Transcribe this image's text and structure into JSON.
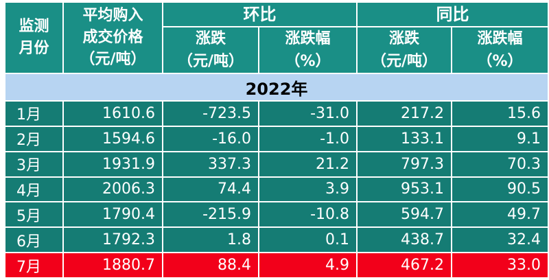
{
  "header": {
    "month_col": [
      "监测",
      "月份"
    ],
    "price_col": [
      "平均购入",
      "成交价格",
      "（元/吨）"
    ],
    "mom_group": "环比",
    "yoy_group": "同比",
    "change_label": [
      "涨跌",
      "（元/吨）"
    ],
    "change_pct_label": [
      "涨跌幅",
      "（%）"
    ]
  },
  "year_label": "2022年",
  "rows": [
    {
      "month": "1月",
      "price": "1610.6",
      "mom_change": "-723.5",
      "mom_pct": "-31.0",
      "yoy_change": "217.2",
      "yoy_pct": "15.6"
    },
    {
      "month": "2月",
      "price": "1594.6",
      "mom_change": "-16.0",
      "mom_pct": "-1.0",
      "yoy_change": "133.1",
      "yoy_pct": "9.1"
    },
    {
      "month": "3月",
      "price": "1931.9",
      "mom_change": "337.3",
      "mom_pct": "21.2",
      "yoy_change": "797.3",
      "yoy_pct": "70.3"
    },
    {
      "month": "4月",
      "price": "2006.3",
      "mom_change": "74.4",
      "mom_pct": "3.9",
      "yoy_change": "953.1",
      "yoy_pct": "90.5"
    },
    {
      "month": "5月",
      "price": "1790.4",
      "mom_change": "-215.9",
      "mom_pct": "-10.8",
      "yoy_change": "594.7",
      "yoy_pct": "49.7"
    },
    {
      "month": "6月",
      "price": "1792.3",
      "mom_change": "1.8",
      "mom_pct": "0.1",
      "yoy_change": "438.7",
      "yoy_pct": "32.4"
    },
    {
      "month": "7月",
      "price": "1880.7",
      "mom_change": "88.4",
      "mom_pct": "4.9",
      "yoy_change": "467.2",
      "yoy_pct": "33.0"
    }
  ],
  "colors": {
    "header_bg": "#1a8f86",
    "row_bg": "#157c74",
    "year_band": "#b7d4f2",
    "highlight_row": "#f2001a"
  }
}
